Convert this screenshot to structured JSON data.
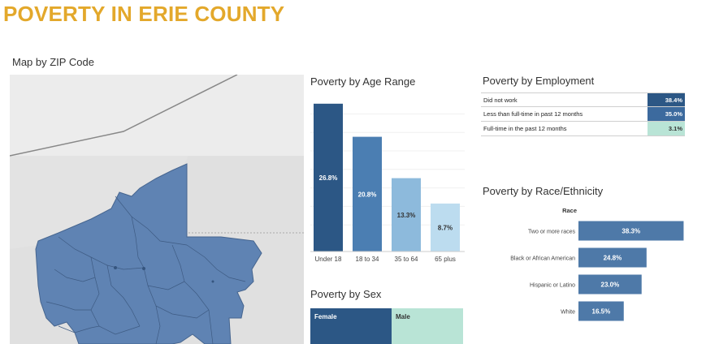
{
  "page": {
    "title": "POVERTY IN ERIE COUNTY"
  },
  "map": {
    "title": "Map by ZIP Code"
  },
  "age": {
    "title": "Poverty by Age Range"
  },
  "sex": {
    "title": "Poverty by Sex",
    "female_label": "Female",
    "male_label": "Male",
    "female_color": "#2c5785",
    "male_color": "#b9e4d6"
  },
  "employment": {
    "title": "Poverty by Employment",
    "rows": [
      {
        "label": "Did not work",
        "value": "38.4%",
        "color": "#2c5785",
        "text_color": "#ffffff"
      },
      {
        "label": "Less than full-time in past 12 months",
        "value": "35.0%",
        "color": "#3c6a9e",
        "text_color": "#ffffff"
      },
      {
        "label": "Full-time in the past 12 months",
        "value": "3.1%",
        "color": "#b9e4d6",
        "text_color": "#333333"
      }
    ]
  },
  "race": {
    "title": "Poverty by Race/Ethnicity",
    "header": "Race"
  },
  "chart_data": [
    {
      "type": "bar",
      "title": "Poverty by Age Range",
      "categories": [
        "Under 18",
        "18 to 34",
        "35 to 64",
        "65 plus"
      ],
      "values": [
        26.8,
        20.8,
        13.3,
        8.7
      ],
      "labels": [
        "26.8%",
        "20.8%",
        "13.3%",
        "8.7%"
      ],
      "colors": [
        "#2c5785",
        "#4b7eb2",
        "#8dbadc",
        "#bcdcef"
      ],
      "label_colors": [
        "#ffffff",
        "#ffffff",
        "#333333",
        "#333333"
      ],
      "ylim": [
        0,
        30
      ],
      "grid": true
    },
    {
      "type": "bar",
      "orientation": "horizontal",
      "title": "Poverty by Race/Ethnicity",
      "categories": [
        "Two or more races",
        "Black or African American",
        "Hispanic or Latino",
        "White"
      ],
      "values": [
        38.3,
        24.8,
        23.0,
        16.5
      ],
      "labels": [
        "38.3%",
        "24.8%",
        "23.0%",
        "16.5%"
      ],
      "color": "#4e79a8",
      "xlim": [
        0,
        40
      ]
    }
  ]
}
